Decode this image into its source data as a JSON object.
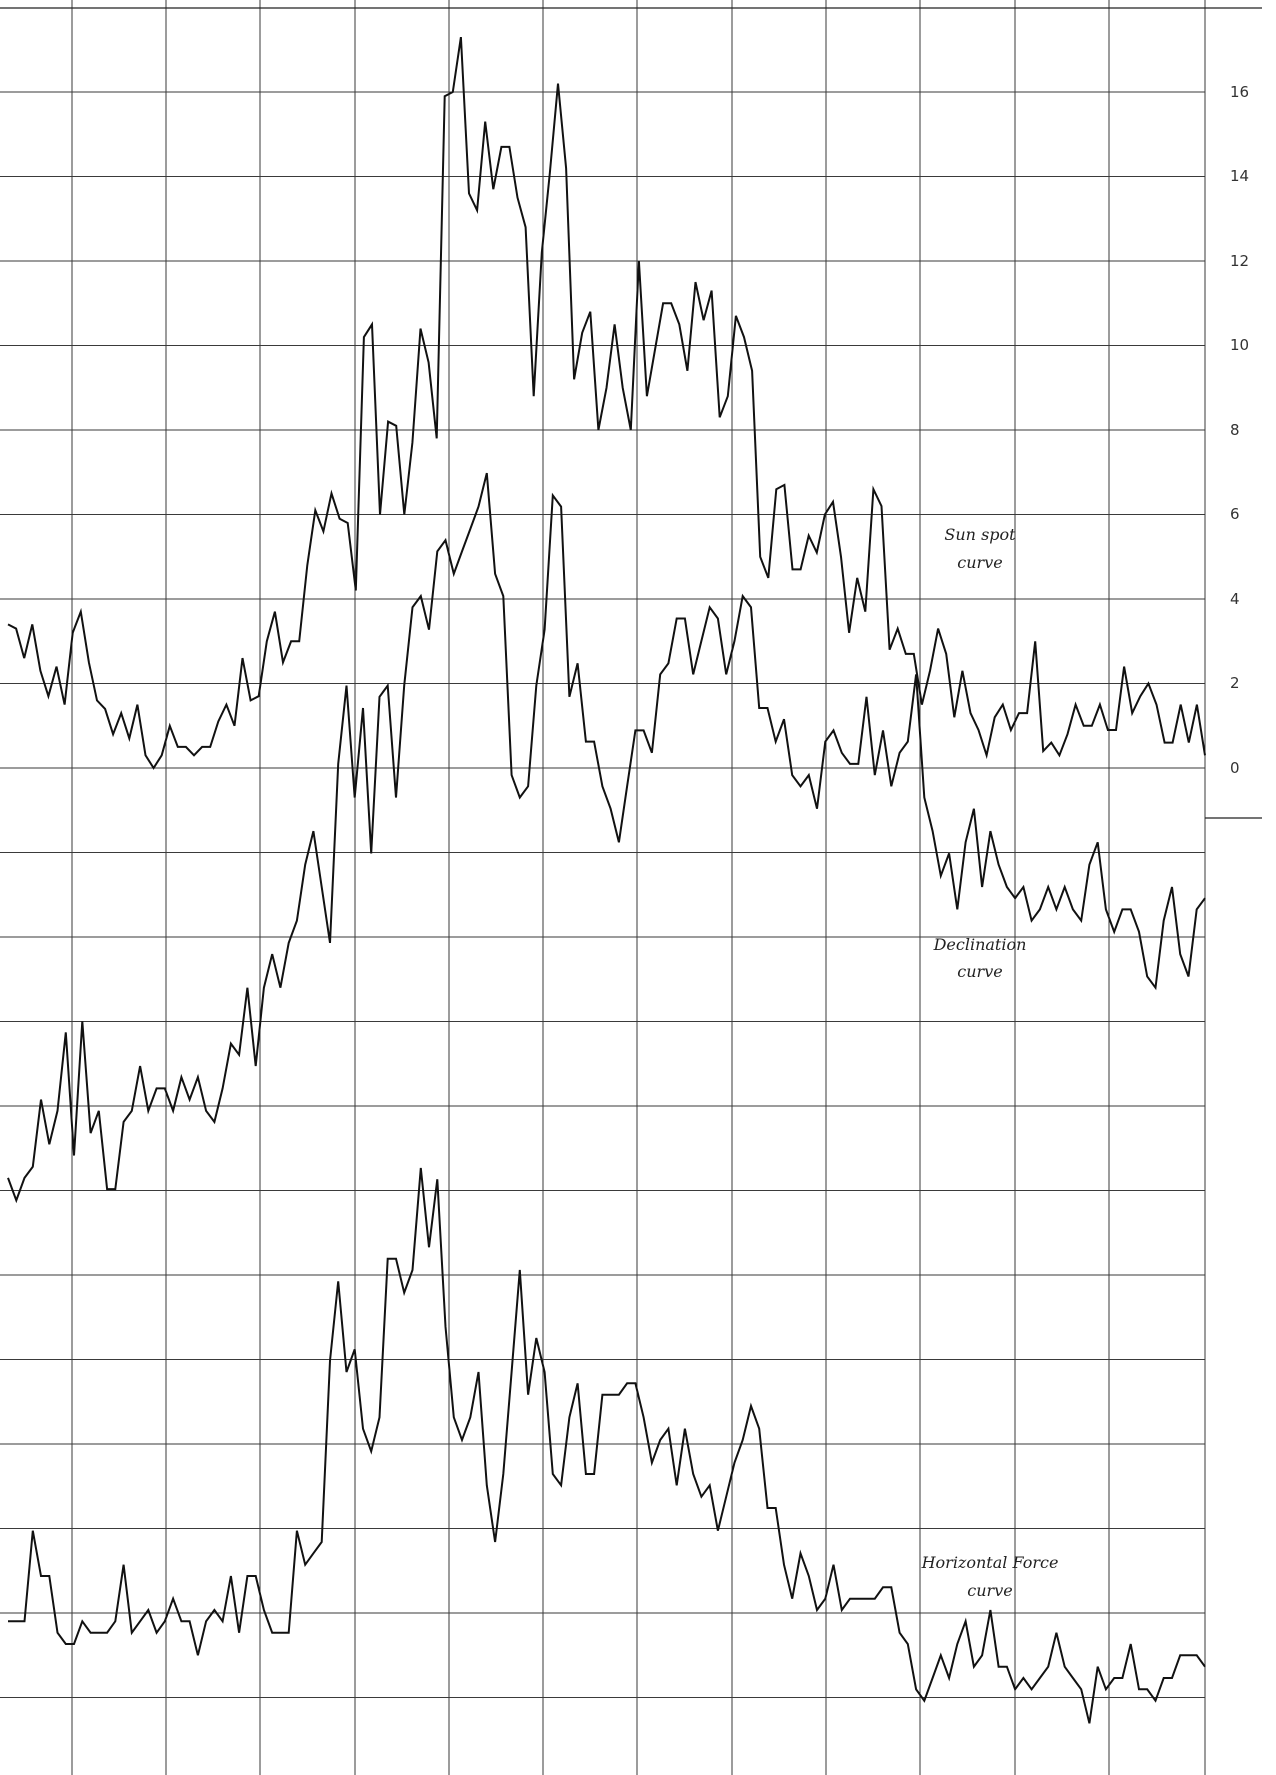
{
  "chart_data": {
    "type": "line",
    "title": "",
    "xlabel": "",
    "ylabel": "",
    "grid": true,
    "x_range": [
      0,
      140
    ],
    "y_scale_ticks": [
      "16",
      "14",
      "12",
      "10",
      "8",
      "6",
      "4",
      "2",
      "0"
    ],
    "annotations": {
      "sunspot": [
        "Sun spot",
        "curve"
      ],
      "declination": [
        "Declination",
        "curve"
      ],
      "horizontal": [
        "Horizontal Force",
        "curve"
      ]
    },
    "series": [
      {
        "key": "sunspot",
        "values": [
          3.4,
          3.3,
          2.6,
          3.4,
          2.3,
          1.7,
          2.4,
          1.5,
          3.2,
          3.7,
          2.5,
          1.6,
          1.4,
          0.8,
          1.3,
          0.7,
          1.5,
          0.3,
          0.0,
          0.3,
          1.0,
          0.5,
          0.5,
          0.3,
          0.5,
          0.5,
          1.1,
          1.5,
          1.0,
          2.6,
          1.6,
          1.7,
          3.0,
          3.7,
          2.5,
          3.0,
          3.0,
          4.8,
          6.1,
          5.6,
          6.5,
          5.9,
          5.8,
          4.2,
          10.2,
          10.5,
          6.0,
          8.2,
          8.1,
          6.0,
          7.7,
          10.4,
          9.6,
          7.8,
          15.9,
          16.0,
          17.3,
          13.6,
          13.2,
          15.3,
          13.7,
          14.7,
          14.7,
          13.5,
          12.8,
          8.8,
          12.2,
          14.1,
          16.2,
          14.2,
          9.2,
          10.3,
          10.8,
          8.0,
          9.0,
          10.5,
          9.0,
          8.0,
          12.0,
          8.8,
          9.9,
          11.0,
          11.0,
          10.5,
          9.4,
          11.5,
          10.6,
          11.3,
          8.3,
          8.8,
          10.7,
          10.2,
          9.4,
          5.0,
          4.5,
          6.6,
          6.7,
          4.7,
          4.7,
          5.5,
          5.1,
          6.0,
          6.3,
          5.0,
          3.2,
          4.5,
          3.7,
          6.6,
          6.2,
          2.8,
          3.3,
          2.7,
          2.7,
          1.5,
          2.3,
          3.3,
          2.7,
          1.2,
          2.3,
          1.3,
          0.9,
          0.3,
          1.2,
          1.5,
          0.9,
          1.3,
          1.3,
          3.0,
          0.4,
          0.6,
          0.3,
          0.8,
          1.5,
          1.0,
          1.0,
          1.5,
          0.9,
          0.9,
          2.4,
          1.3,
          1.7,
          2.0,
          1.5,
          0.6,
          0.6,
          1.5,
          0.6,
          1.5,
          0.3
        ]
      },
      {
        "key": "declination",
        "values": [
          0.6,
          0.4,
          0.6,
          0.7,
          1.3,
          0.9,
          1.2,
          1.9,
          0.8,
          2.0,
          1.0,
          1.2,
          0.5,
          0.5,
          1.1,
          1.2,
          1.6,
          1.2,
          1.4,
          1.4,
          1.2,
          1.5,
          1.3,
          1.5,
          1.2,
          1.1,
          1.4,
          1.8,
          1.7,
          2.3,
          1.6,
          2.3,
          2.6,
          2.3,
          2.7,
          2.9,
          3.4,
          3.7,
          3.2,
          2.7,
          4.3,
          5.0,
          4.0,
          4.8,
          3.5,
          4.9,
          5.0,
          4.0,
          5.0,
          5.7,
          5.8,
          5.5,
          6.2,
          6.3,
          6.0,
          6.2,
          6.4,
          6.6,
          6.9,
          6.0,
          5.8,
          4.2,
          4.0,
          4.1,
          5.0,
          5.5,
          6.7,
          6.6,
          4.9,
          5.2,
          4.5,
          4.5,
          4.1,
          3.9,
          3.6,
          4.1,
          4.6,
          4.6,
          4.4,
          5.1,
          5.2,
          5.6,
          5.6,
          5.1,
          5.4,
          5.7,
          5.6,
          5.1,
          5.4,
          5.8,
          5.7,
          4.8,
          4.8,
          4.5,
          4.7,
          4.2,
          4.1,
          4.2,
          3.9,
          4.5,
          4.6,
          4.4,
          4.3,
          4.3,
          4.9,
          4.2,
          4.6,
          4.1,
          4.4,
          4.5,
          5.1,
          4.0,
          3.7,
          3.3,
          3.5,
          3.0,
          3.6,
          3.9,
          3.2,
          3.7,
          3.4,
          3.2,
          3.1,
          3.2,
          2.9,
          3.0,
          3.2,
          3.0,
          3.2,
          3.0,
          2.9,
          3.4,
          3.6,
          3.0,
          2.8,
          3.0,
          3.0,
          2.8,
          2.4,
          2.3,
          2.9,
          3.2,
          2.6,
          2.4,
          3.0,
          3.1
        ]
      },
      {
        "key": "horizontal",
        "values": [
          1.4,
          1.4,
          1.4,
          2.2,
          1.8,
          1.8,
          1.3,
          1.2,
          1.2,
          1.4,
          1.3,
          1.3,
          1.3,
          1.4,
          1.9,
          1.3,
          1.4,
          1.5,
          1.3,
          1.4,
          1.6,
          1.4,
          1.4,
          1.1,
          1.4,
          1.5,
          1.4,
          1.8,
          1.3,
          1.8,
          1.8,
          1.5,
          1.3,
          1.3,
          1.3,
          2.2,
          1.9,
          2.0,
          2.1,
          3.7,
          4.4,
          3.6,
          3.8,
          3.1,
          2.9,
          3.2,
          4.6,
          4.6,
          4.3,
          4.5,
          5.4,
          4.7,
          5.3,
          4.0,
          3.2,
          3.0,
          3.2,
          3.6,
          2.6,
          2.1,
          2.7,
          3.6,
          4.5,
          3.4,
          3.9,
          3.6,
          2.7,
          2.6,
          3.2,
          3.5,
          2.7,
          2.7,
          3.4,
          3.4,
          3.4,
          3.5,
          3.5,
          3.2,
          2.8,
          3.0,
          3.1,
          2.6,
          3.1,
          2.7,
          2.5,
          2.6,
          2.2,
          2.5,
          2.8,
          3.0,
          3.3,
          3.1,
          2.4,
          2.4,
          1.9,
          1.6,
          2.0,
          1.8,
          1.5,
          1.6,
          1.9,
          1.5,
          1.6,
          1.6,
          1.6,
          1.6,
          1.7,
          1.7,
          1.3,
          1.2,
          0.8,
          0.7,
          0.9,
          1.1,
          0.9,
          1.2,
          1.4,
          1.0,
          1.1,
          1.5,
          1.0,
          1.0,
          0.8,
          0.9,
          0.8,
          0.9,
          1.0,
          1.3,
          1.0,
          0.9,
          0.8,
          0.5,
          1.0,
          0.8,
          0.9,
          0.9,
          1.2,
          0.8,
          0.8,
          0.7,
          0.9,
          0.9,
          1.1,
          1.1,
          1.1,
          1.0
        ]
      }
    ]
  }
}
